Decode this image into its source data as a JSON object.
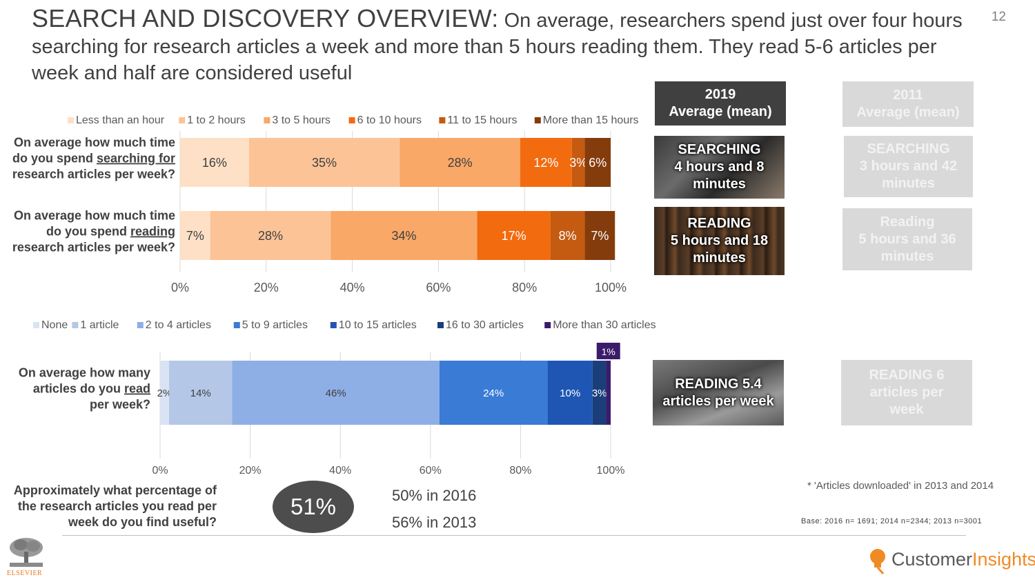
{
  "title": {
    "main": "SEARCH AND DISCOVERY OVERVIEW:",
    "sub": "On average, researchers spend just over four hours searching for research articles a week and more than 5 hours reading them. They read 5-6 articles per week and half are considered useful"
  },
  "slide_number": "12",
  "chart_data": [
    {
      "type": "bar",
      "orientation": "horizontal-stacked-100",
      "legend": [
        "Less than an hour",
        "1 to 2 hours",
        "3 to 5 hours",
        "6 to 10 hours",
        "11 to 15 hours",
        "More than 15 hours"
      ],
      "colors": [
        "#fde0c5",
        "#fcc396",
        "#f9a867",
        "#f26b0f",
        "#c55a11",
        "#843c0c"
      ],
      "categories": [
        {
          "pre": "On average how much time",
          "line2_pre": "do you spend ",
          "line2_u": "searching for",
          "line3": "research articles per week?"
        },
        {
          "pre": "On average how much time",
          "line2_pre": "do you spend ",
          "line2_u": "reading",
          "line3": "research articles per week?"
        }
      ],
      "series_values": [
        [
          16,
          35,
          28,
          12,
          3,
          6
        ],
        [
          7,
          28,
          34,
          17,
          8,
          7
        ]
      ],
      "labels": [
        [
          "16%",
          "35%",
          "28%",
          "12%",
          "3%",
          "6%"
        ],
        [
          "7%",
          "28%",
          "34%",
          "17%",
          "8%",
          "7%"
        ]
      ],
      "xlim": [
        0,
        100
      ],
      "ticks": [
        "0%",
        "20%",
        "40%",
        "60%",
        "80%",
        "100%"
      ]
    },
    {
      "type": "bar",
      "orientation": "horizontal-stacked-100",
      "legend": [
        "None",
        "1 article",
        "2 to 4 articles",
        "5 to 9 articles",
        "10 to 15 articles",
        "16 to 30 articles",
        "More than 30 articles"
      ],
      "colors": [
        "#dae3f3",
        "#b4c7e7",
        "#8eaee6",
        "#3a7bd5",
        "#1f56b4",
        "#1b3e7a",
        "#3b1c6b"
      ],
      "categories": [
        {
          "pre": "On average how many",
          "line2_pre": "articles do you ",
          "line2_u": "read",
          "line3": "per week?"
        }
      ],
      "series_values": [
        [
          2,
          14,
          46,
          24,
          10,
          3,
          1
        ]
      ],
      "labels": [
        [
          "2%",
          "14%",
          "46%",
          "24%",
          "10%",
          "3%",
          "1%"
        ]
      ],
      "xlim": [
        0,
        100
      ],
      "ticks": [
        "0%",
        "20%",
        "40%",
        "60%",
        "80%",
        "100%"
      ]
    }
  ],
  "panels_2019": {
    "header": "2019\nAverage (mean)",
    "searching": "SEARCHING\n4 hours and 8\nminutes",
    "reading": "READING\n5 hours and 18\nminutes",
    "articles": "READING 5.4\narticles per week"
  },
  "panels_2011": {
    "header": "2011\nAverage (mean)",
    "searching": "SEARCHING\n3 hours and 42\nminutes",
    "reading": "Reading\n5 hours and 36\nminutes",
    "articles": "READING 6\narticles per\nweek"
  },
  "useful": {
    "question": "Approximately what percentage of the research articles you read per week do you find useful?",
    "value": "51%",
    "compare_2016": "50% in 2016",
    "compare_2013": "56% in 2013"
  },
  "footnote": "* 'Articles downloaded' in 2013 and 2014",
  "base": "Base: 2016 n= 1691; 2014 n=2344; 2013 n=3001",
  "brand": {
    "part1": "Customer",
    "part2": "Insights"
  },
  "logo": {
    "text": "ELSEVIER"
  }
}
